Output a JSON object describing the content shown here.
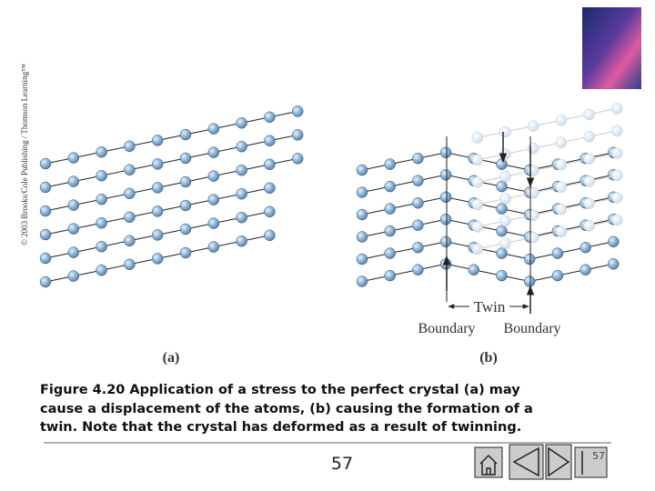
{
  "copyright": "© 2003 Brooks/Cole Publishing / Thomson Learning™",
  "figure": {
    "twin_label": "Twin",
    "boundary_left": "Boundary",
    "boundary_right": "Boundary",
    "panel_a": "(a)",
    "panel_b": "(b)"
  },
  "caption": {
    "lines": [
      "Figure 4.20 Application of a stress to the perfect crystal (a) may",
      "cause a displacement of the atoms, (b) causing the formation of a",
      "twin.  Note that the crystal has deformed as a result of twinning."
    ]
  },
  "footer": {
    "page_number": "57",
    "nav_page": "57"
  }
}
